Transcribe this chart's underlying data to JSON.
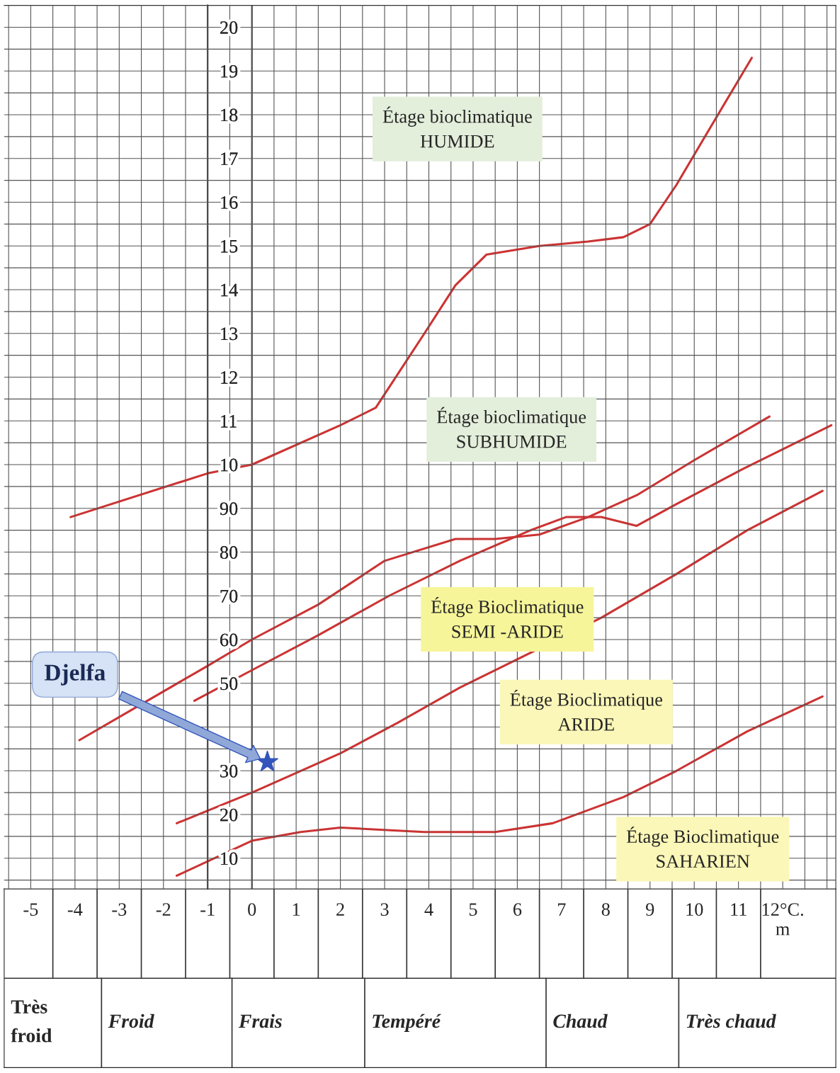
{
  "chart_data": {
    "type": "line",
    "xlim": [
      -5.6,
      13.2
    ],
    "ylim": [
      3,
      205
    ],
    "xticks": [
      -5,
      -4,
      -3,
      -2,
      -1,
      0,
      1,
      2,
      3,
      4,
      5,
      6,
      7,
      8,
      9,
      10,
      11,
      {
        "value": 12,
        "label": "12°C.\nm"
      }
    ],
    "yticks": [
      10,
      20,
      30,
      {
        "value": 40,
        "label": null
      },
      50,
      60,
      70,
      80,
      90
    ],
    "y2lim": [
      0.3,
      20.5
    ],
    "y2ticks": [
      10,
      11,
      12,
      13,
      14,
      15,
      16,
      17,
      18,
      19,
      20
    ],
    "grid": true,
    "legend": false,
    "series": [
      {
        "color": "#cc3333",
        "x": [
          -4.1,
          -1,
          0,
          2,
          2.8,
          3.9,
          4.6,
          5.3,
          6.5,
          7.6,
          8.4,
          9,
          9.6,
          10.3,
          11.3
        ],
        "values": [
          88,
          98,
          100,
          109,
          113,
          130,
          141,
          148,
          150,
          151,
          152,
          155,
          164,
          176,
          193
        ]
      },
      {
        "color": "#cc3333",
        "x": [
          -3.9,
          -1,
          0,
          1.5,
          3,
          4.6,
          5.5,
          6.5,
          7.6,
          8.7,
          10,
          11.7
        ],
        "values": [
          37,
          54,
          60,
          68,
          78,
          83,
          83,
          84,
          88,
          93,
          101,
          111
        ]
      },
      {
        "color": "#cc3333",
        "x": [
          -1.3,
          0,
          1.5,
          3.1,
          4.7,
          6.3,
          7.1,
          7.9,
          8.7,
          9.6,
          11.1,
          13.1
        ],
        "values": [
          46,
          53,
          61,
          70,
          78,
          85,
          88,
          88,
          86,
          91,
          99,
          109
        ]
      },
      {
        "color": "#cc3333",
        "x": [
          -1.7,
          0,
          2,
          3.3,
          4.7,
          6.3,
          7.9,
          9.6,
          11.2,
          12.9
        ],
        "values": [
          18,
          25,
          34,
          41,
          49,
          57,
          65,
          75,
          85,
          94
        ]
      },
      {
        "color": "#cc3333",
        "x": [
          -1.7,
          0,
          1.1,
          2,
          3.9,
          5.5,
          6.8,
          8.4,
          9.6,
          11.2,
          12.9
        ],
        "values": [
          6,
          14,
          16,
          17,
          16,
          16,
          18,
          24,
          30,
          39,
          47
        ]
      },
      {
        "type": "scatter",
        "name": "Djelfa",
        "color": "#3355bb",
        "marker": "star",
        "x": [
          0.35
        ],
        "values": [
          32
        ]
      }
    ],
    "annotations": [
      "Étage bioclimatique\nHUMIDE",
      "Étage bioclimatique\nSUBHUMIDE",
      "Étage Bioclimatique\nSEMI -ARIDE",
      "Étage Bioclimatique\nARIDE",
      "Étage Bioclimatique\nSAHARIEN",
      "Très\nfroid",
      "Froid",
      "Frais",
      "Tempéré",
      "Chaud",
      "Très chaud"
    ]
  }
}
